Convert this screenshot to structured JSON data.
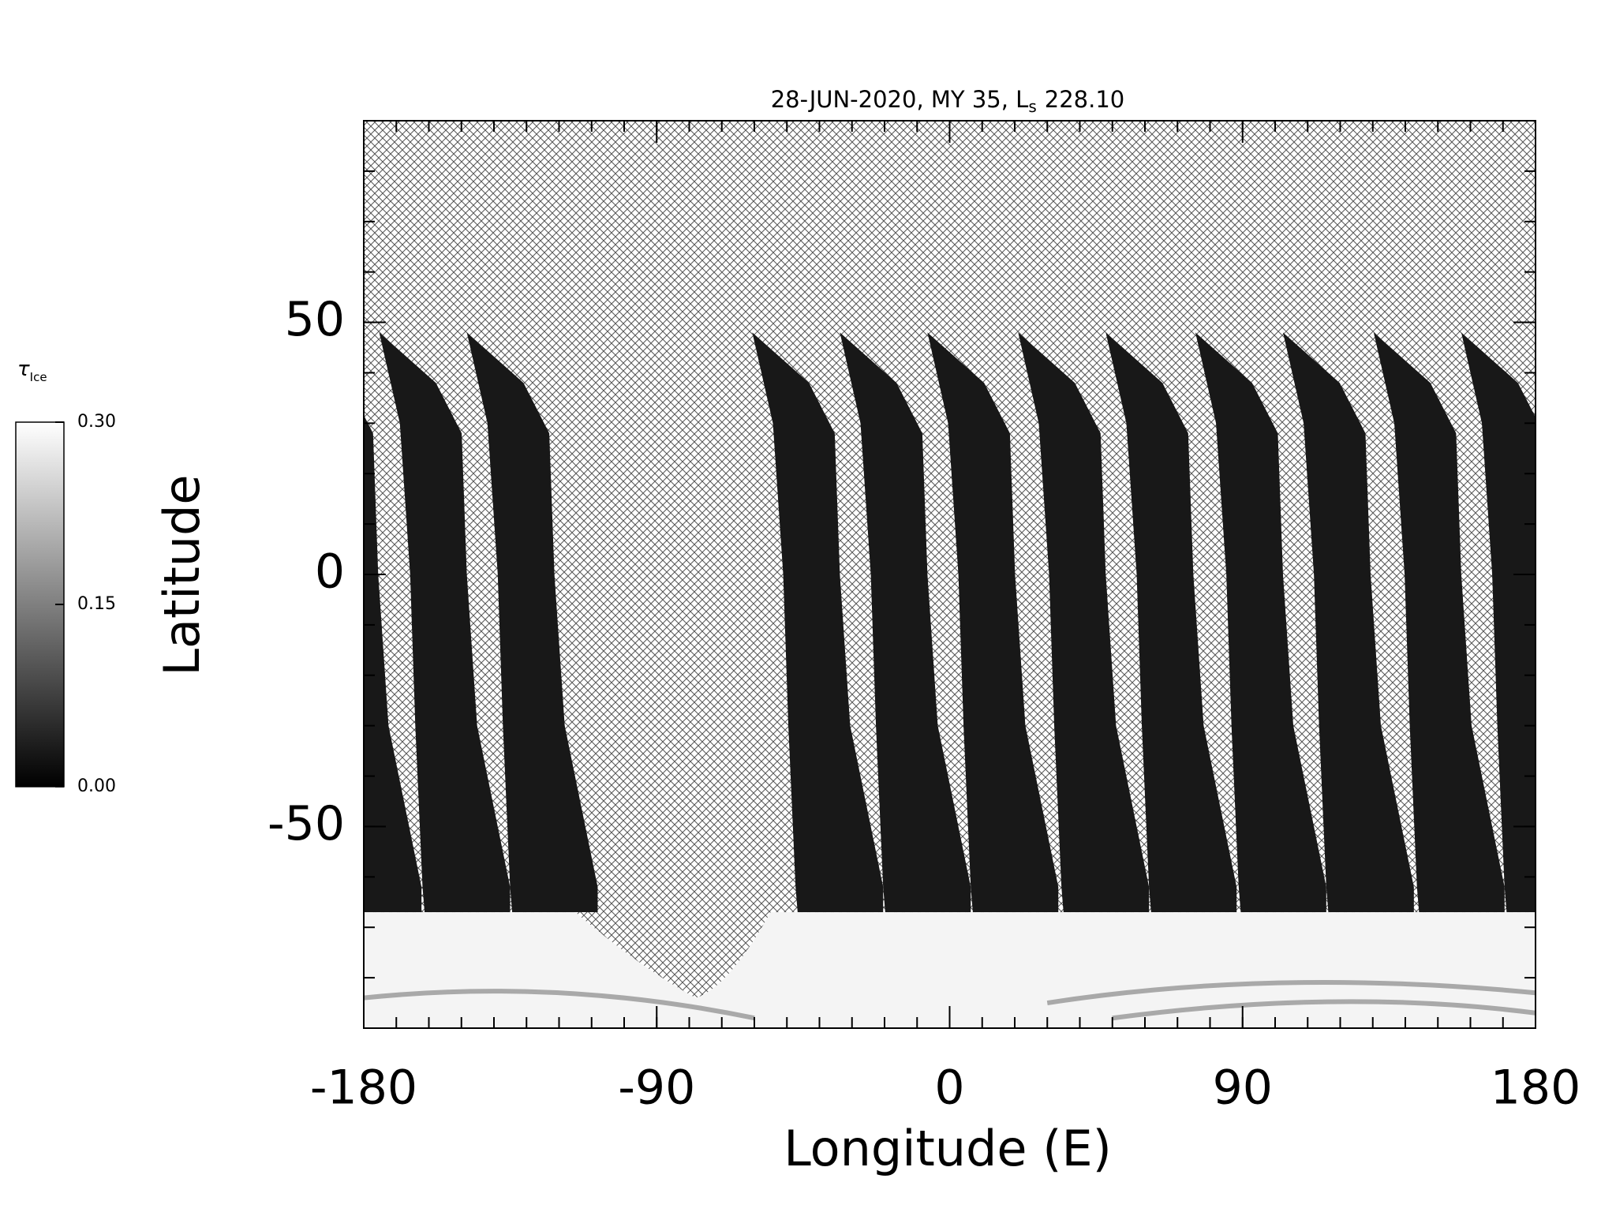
{
  "chart_data": {
    "type": "map",
    "title": {
      "prefix": "28-JUN-2020, MY 35,  L",
      "sub": "s",
      "suffix": "228.10"
    },
    "xlabel": "Longitude (E)",
    "ylabel": "Latitude",
    "xlim": [
      -180,
      180
    ],
    "ylim": [
      -90,
      90
    ],
    "xticks": [
      -180,
      -90,
      0,
      90,
      180
    ],
    "yticks": [
      -50,
      0,
      50
    ],
    "colorbar": {
      "label": {
        "symbol": "τ",
        "sub": "Ice"
      },
      "clim": [
        0,
        0.3
      ],
      "ticks": [
        {
          "value": 0,
          "label": "0.00"
        },
        {
          "value": 0.15,
          "label": "0.15"
        },
        {
          "value": 0.3,
          "label": "0.30"
        }
      ]
    }
  }
}
